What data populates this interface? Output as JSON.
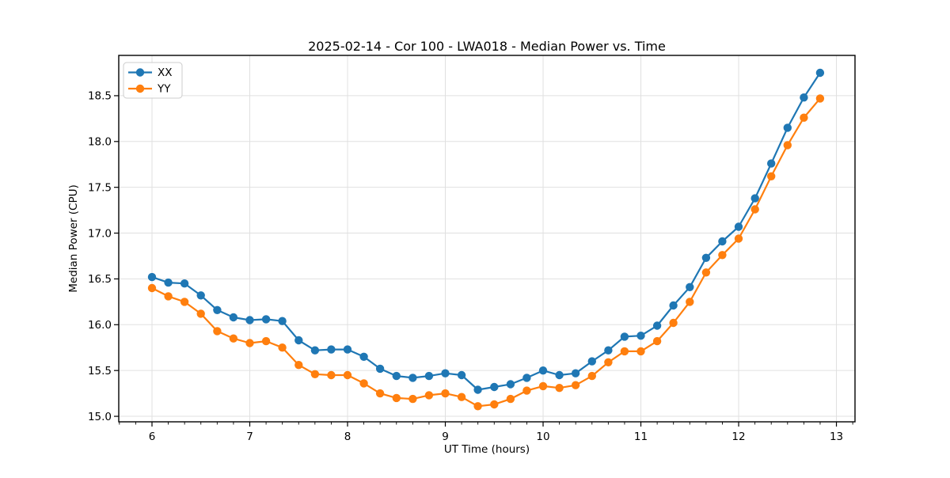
{
  "figure": {
    "title": "2025-02-14 - Cor 100 - LWA018 - Median Power vs. Time"
  },
  "legend": {
    "position": "upper left",
    "items": [
      {
        "label": "XX",
        "color": "#1f77b4"
      },
      {
        "label": "YY",
        "color": "#ff7f0e"
      }
    ]
  },
  "chart_data": {
    "type": "line",
    "title": "2025-02-14 - Cor 100 - LWA018 - Median Power vs. Time",
    "xlabel": "UT Time (hours)",
    "ylabel": "Median Power (CPU)",
    "xlim": [
      5.66,
      13.19
    ],
    "ylim": [
      14.94,
      18.94
    ],
    "xticks": [
      6,
      7,
      8,
      9,
      10,
      11,
      12,
      13
    ],
    "xtick_labels": [
      "6",
      "7",
      "8",
      "9",
      "10",
      "11",
      "12",
      "13"
    ],
    "yticks": [
      15.0,
      15.5,
      16.0,
      16.5,
      17.0,
      17.5,
      18.0,
      18.5
    ],
    "ytick_labels": [
      "15.0",
      "15.5",
      "16.0",
      "16.5",
      "17.0",
      "17.5",
      "18.0",
      "18.5"
    ],
    "x_minor_interval": 0.16667,
    "grid": true,
    "marker": "o",
    "legend_position": "upper left",
    "x": [
      6.0,
      6.167,
      6.333,
      6.5,
      6.667,
      6.833,
      7.0,
      7.167,
      7.333,
      7.5,
      7.667,
      7.833,
      8.0,
      8.167,
      8.333,
      8.5,
      8.667,
      8.833,
      9.0,
      9.167,
      9.333,
      9.5,
      9.667,
      9.833,
      10.0,
      10.167,
      10.333,
      10.5,
      10.667,
      10.833,
      11.0,
      11.167,
      11.333,
      11.5,
      11.667,
      11.833,
      12.0,
      12.167,
      12.333,
      12.5,
      12.667,
      12.833
    ],
    "series": [
      {
        "name": "XX",
        "color": "#1f77b4",
        "values": [
          16.52,
          16.46,
          16.45,
          16.32,
          16.16,
          16.08,
          16.05,
          16.06,
          16.04,
          15.83,
          15.72,
          15.73,
          15.73,
          15.65,
          15.52,
          15.44,
          15.42,
          15.44,
          15.47,
          15.45,
          15.29,
          15.32,
          15.35,
          15.42,
          15.5,
          15.45,
          15.47,
          15.6,
          15.72,
          15.87,
          15.88,
          15.99,
          16.21,
          16.41,
          16.73,
          16.91,
          17.07,
          17.38,
          17.76,
          18.15,
          18.48,
          18.75
        ]
      },
      {
        "name": "YY",
        "color": "#ff7f0e",
        "values": [
          16.4,
          16.31,
          16.25,
          16.12,
          15.93,
          15.85,
          15.8,
          15.82,
          15.75,
          15.56,
          15.46,
          15.45,
          15.45,
          15.36,
          15.25,
          15.2,
          15.19,
          15.23,
          15.25,
          15.21,
          15.11,
          15.13,
          15.19,
          15.28,
          15.33,
          15.31,
          15.34,
          15.44,
          15.59,
          15.71,
          15.71,
          15.82,
          16.02,
          16.25,
          16.57,
          16.76,
          16.94,
          17.26,
          17.62,
          17.96,
          18.26,
          18.47
        ]
      }
    ]
  },
  "style": {
    "grid_color": "#e0e0e0",
    "spine_color": "#000000",
    "background": "#ffffff"
  }
}
